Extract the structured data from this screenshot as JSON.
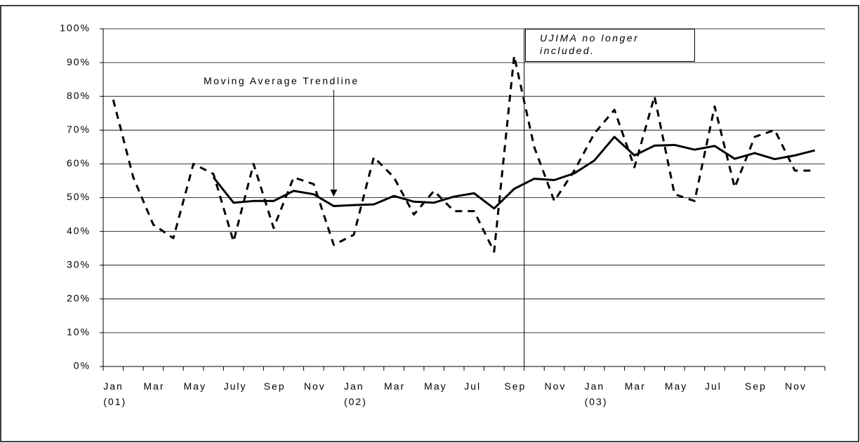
{
  "chart_data": {
    "type": "line",
    "annotations": [
      "Moving Average Trendline",
      "UJIMA no longer included."
    ],
    "categories": [
      "Jan\n(01)",
      null,
      "Mar",
      null,
      "May",
      null,
      "July",
      null,
      "Sep",
      null,
      "Nov",
      null,
      "Jan\n(02)",
      null,
      "Mar",
      null,
      "May",
      null,
      "Jul",
      null,
      "Sep",
      null,
      "Nov",
      null,
      "Jan\n(03)",
      null,
      "Mar",
      null,
      "May",
      null,
      "Jul",
      null,
      "Sep",
      null,
      "Nov",
      null
    ],
    "series": [
      {
        "color": "#000000",
        "style": "dashed",
        "values": [
          79,
          56,
          42,
          38,
          60,
          57,
          37,
          60,
          41,
          56,
          54,
          36,
          39,
          62,
          56,
          45,
          52,
          46,
          46,
          34,
          92,
          65,
          49,
          58,
          69,
          76,
          59,
          80,
          51,
          49,
          77,
          53,
          68,
          70,
          58,
          58
        ]
      },
      {
        "color": "#000000",
        "style": "solid",
        "values": [
          null,
          null,
          null,
          null,
          null,
          56,
          48.5,
          49,
          49,
          52,
          51,
          47.5,
          47.8,
          48,
          50.5,
          48.8,
          48.5,
          50.3,
          51.3,
          46.8,
          52.6,
          55.6,
          55.2,
          57.2,
          61,
          68,
          62.5,
          65.4,
          65.6,
          64.2,
          65.3,
          61.5,
          63.2,
          61.4,
          62.5,
          64
        ]
      }
    ],
    "ylim": [
      0,
      100
    ],
    "yticks": [
      {
        "value": 0,
        "label": "0%"
      },
      {
        "value": 10,
        "label": "10%"
      },
      {
        "value": 20,
        "label": "20%"
      },
      {
        "value": 30,
        "label": "30%"
      },
      {
        "value": 40,
        "label": "40%"
      },
      {
        "value": 50,
        "label": "50%"
      },
      {
        "value": 60,
        "label": "60%"
      },
      {
        "value": 70,
        "label": "70%"
      },
      {
        "value": 80,
        "label": "80%"
      },
      {
        "value": 90,
        "label": "90%"
      },
      {
        "value": 100,
        "label": "100%"
      }
    ],
    "grid": true
  }
}
